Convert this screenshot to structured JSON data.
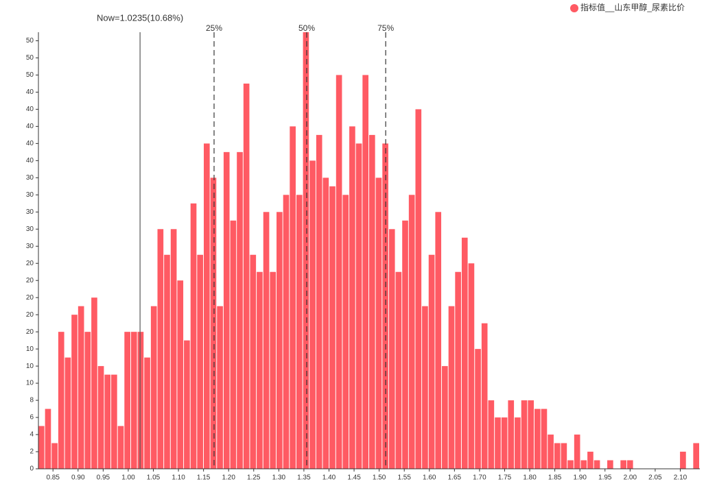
{
  "chart_data": {
    "type": "histogram",
    "legend": "top-right",
    "series": [
      {
        "name": "指标值__山东甲醇_尿素比价",
        "color": "#ff5a63",
        "values": [
          5,
          7,
          3,
          16,
          13,
          18,
          19,
          16,
          20,
          12,
          11,
          11,
          5,
          16,
          16,
          16,
          13,
          19,
          28,
          25,
          28,
          22,
          15,
          31,
          25,
          38,
          34,
          19,
          37,
          29,
          37,
          45,
          25,
          23,
          30,
          23,
          30,
          32,
          40,
          32,
          51,
          36,
          39,
          34,
          33,
          46,
          32,
          40,
          38,
          46,
          39,
          34,
          38,
          28,
          23,
          29,
          32,
          42,
          19,
          25,
          30,
          12,
          19,
          23,
          27,
          24,
          14,
          17,
          8,
          6,
          6,
          8,
          6,
          8,
          8,
          7,
          7,
          4,
          3,
          3,
          1,
          4,
          1,
          2,
          1,
          0,
          1,
          0,
          1,
          1,
          0,
          0,
          0,
          0,
          0,
          0,
          0,
          2,
          0,
          3
        ]
      }
    ],
    "bins": [
      0.821,
      0.83418,
      0.84736,
      0.86054,
      0.87372,
      0.8869,
      0.90008,
      0.91326,
      0.92644,
      0.93962,
      0.9528,
      0.96598,
      0.97916,
      0.99234,
      1.00552,
      1.0187,
      1.03188,
      1.04506,
      1.05824,
      1.07142,
      1.0846,
      1.09778,
      1.11096,
      1.12414,
      1.13732,
      1.1505,
      1.16368,
      1.17686,
      1.19004,
      1.20322,
      1.2164,
      1.22958,
      1.24276,
      1.25594,
      1.26912,
      1.2823,
      1.29548,
      1.30866,
      1.32184,
      1.33502,
      1.3482,
      1.36138,
      1.37456,
      1.38774,
      1.40092,
      1.4141,
      1.42728,
      1.44046,
      1.45364,
      1.46682,
      1.48,
      1.49318,
      1.50636,
      1.51954,
      1.53272,
      1.5459,
      1.55908,
      1.57226,
      1.58544,
      1.59862,
      1.6118,
      1.62498,
      1.63816,
      1.65134,
      1.66452,
      1.6777,
      1.69088,
      1.70406,
      1.71724,
      1.73042,
      1.7436,
      1.75678,
      1.76996,
      1.78314,
      1.79632,
      1.8095,
      1.82268,
      1.83586,
      1.84904,
      1.86222,
      1.8754,
      1.88858,
      1.90176,
      1.91494,
      1.92812,
      1.9413,
      1.95448,
      1.96766,
      1.98084,
      1.99402,
      2.0072,
      2.02038,
      2.03356,
      2.04674,
      2.05992,
      2.0731,
      2.08628,
      2.09946,
      2.11264,
      2.12582,
      2.139
    ],
    "xlim": [
      0.821,
      2.139
    ],
    "xticks": [
      0.85,
      {
        "value": 0.9,
        "label": "0.90"
      },
      0.95,
      {
        "value": 1.0,
        "label": "1.00"
      },
      1.05,
      {
        "value": 1.1,
        "label": "1.10"
      },
      1.15,
      {
        "value": 1.2,
        "label": "1.20"
      },
      1.25,
      {
        "value": 1.3,
        "label": "1.30"
      },
      1.35,
      {
        "value": 1.4,
        "label": "1.40"
      },
      1.45,
      {
        "value": 1.5,
        "label": "1.50"
      },
      1.55,
      {
        "value": 1.6,
        "label": "1.60"
      },
      1.65,
      {
        "value": 1.7,
        "label": "1.70"
      },
      1.75,
      {
        "value": 1.8,
        "label": "1.80"
      },
      1.85,
      {
        "value": 1.9,
        "label": "1.90"
      },
      1.95,
      {
        "value": 2.0,
        "label": "2.00"
      },
      2.05,
      {
        "value": 2.1,
        "label": "2.10"
      }
    ],
    "ylim": [
      0,
      51
    ],
    "yticks": [
      0,
      2,
      4,
      6,
      8,
      10,
      {
        "value": 12,
        "label": "10"
      },
      {
        "value": 14,
        "label": "10"
      },
      {
        "value": 16,
        "label": "20"
      },
      {
        "value": 18,
        "label": "20"
      },
      {
        "value": 20,
        "label": "20"
      },
      {
        "value": 22,
        "label": "20"
      },
      {
        "value": 24,
        "label": "20"
      },
      {
        "value": 26,
        "label": "30"
      },
      {
        "value": 28,
        "label": "30"
      },
      30,
      {
        "value": 32,
        "label": "30"
      },
      {
        "value": 34,
        "label": "30"
      },
      {
        "value": 36,
        "label": "40"
      },
      {
        "value": 38,
        "label": "40"
      },
      40,
      {
        "value": 42,
        "label": "40"
      },
      {
        "value": 44,
        "label": "40"
      },
      {
        "value": 46,
        "label": "50"
      },
      {
        "value": 48,
        "label": "50"
      },
      50
    ],
    "lines": [
      {
        "x": 1.0235,
        "label": "Now=1.0235(10.68%)",
        "style": "solid"
      },
      {
        "x": 1.171,
        "label": "25%",
        "style": "dashed"
      },
      {
        "x": 1.3556,
        "label": "50%",
        "style": "dashed"
      },
      {
        "x": 1.513,
        "label": "75%",
        "style": "dashed"
      }
    ]
  }
}
